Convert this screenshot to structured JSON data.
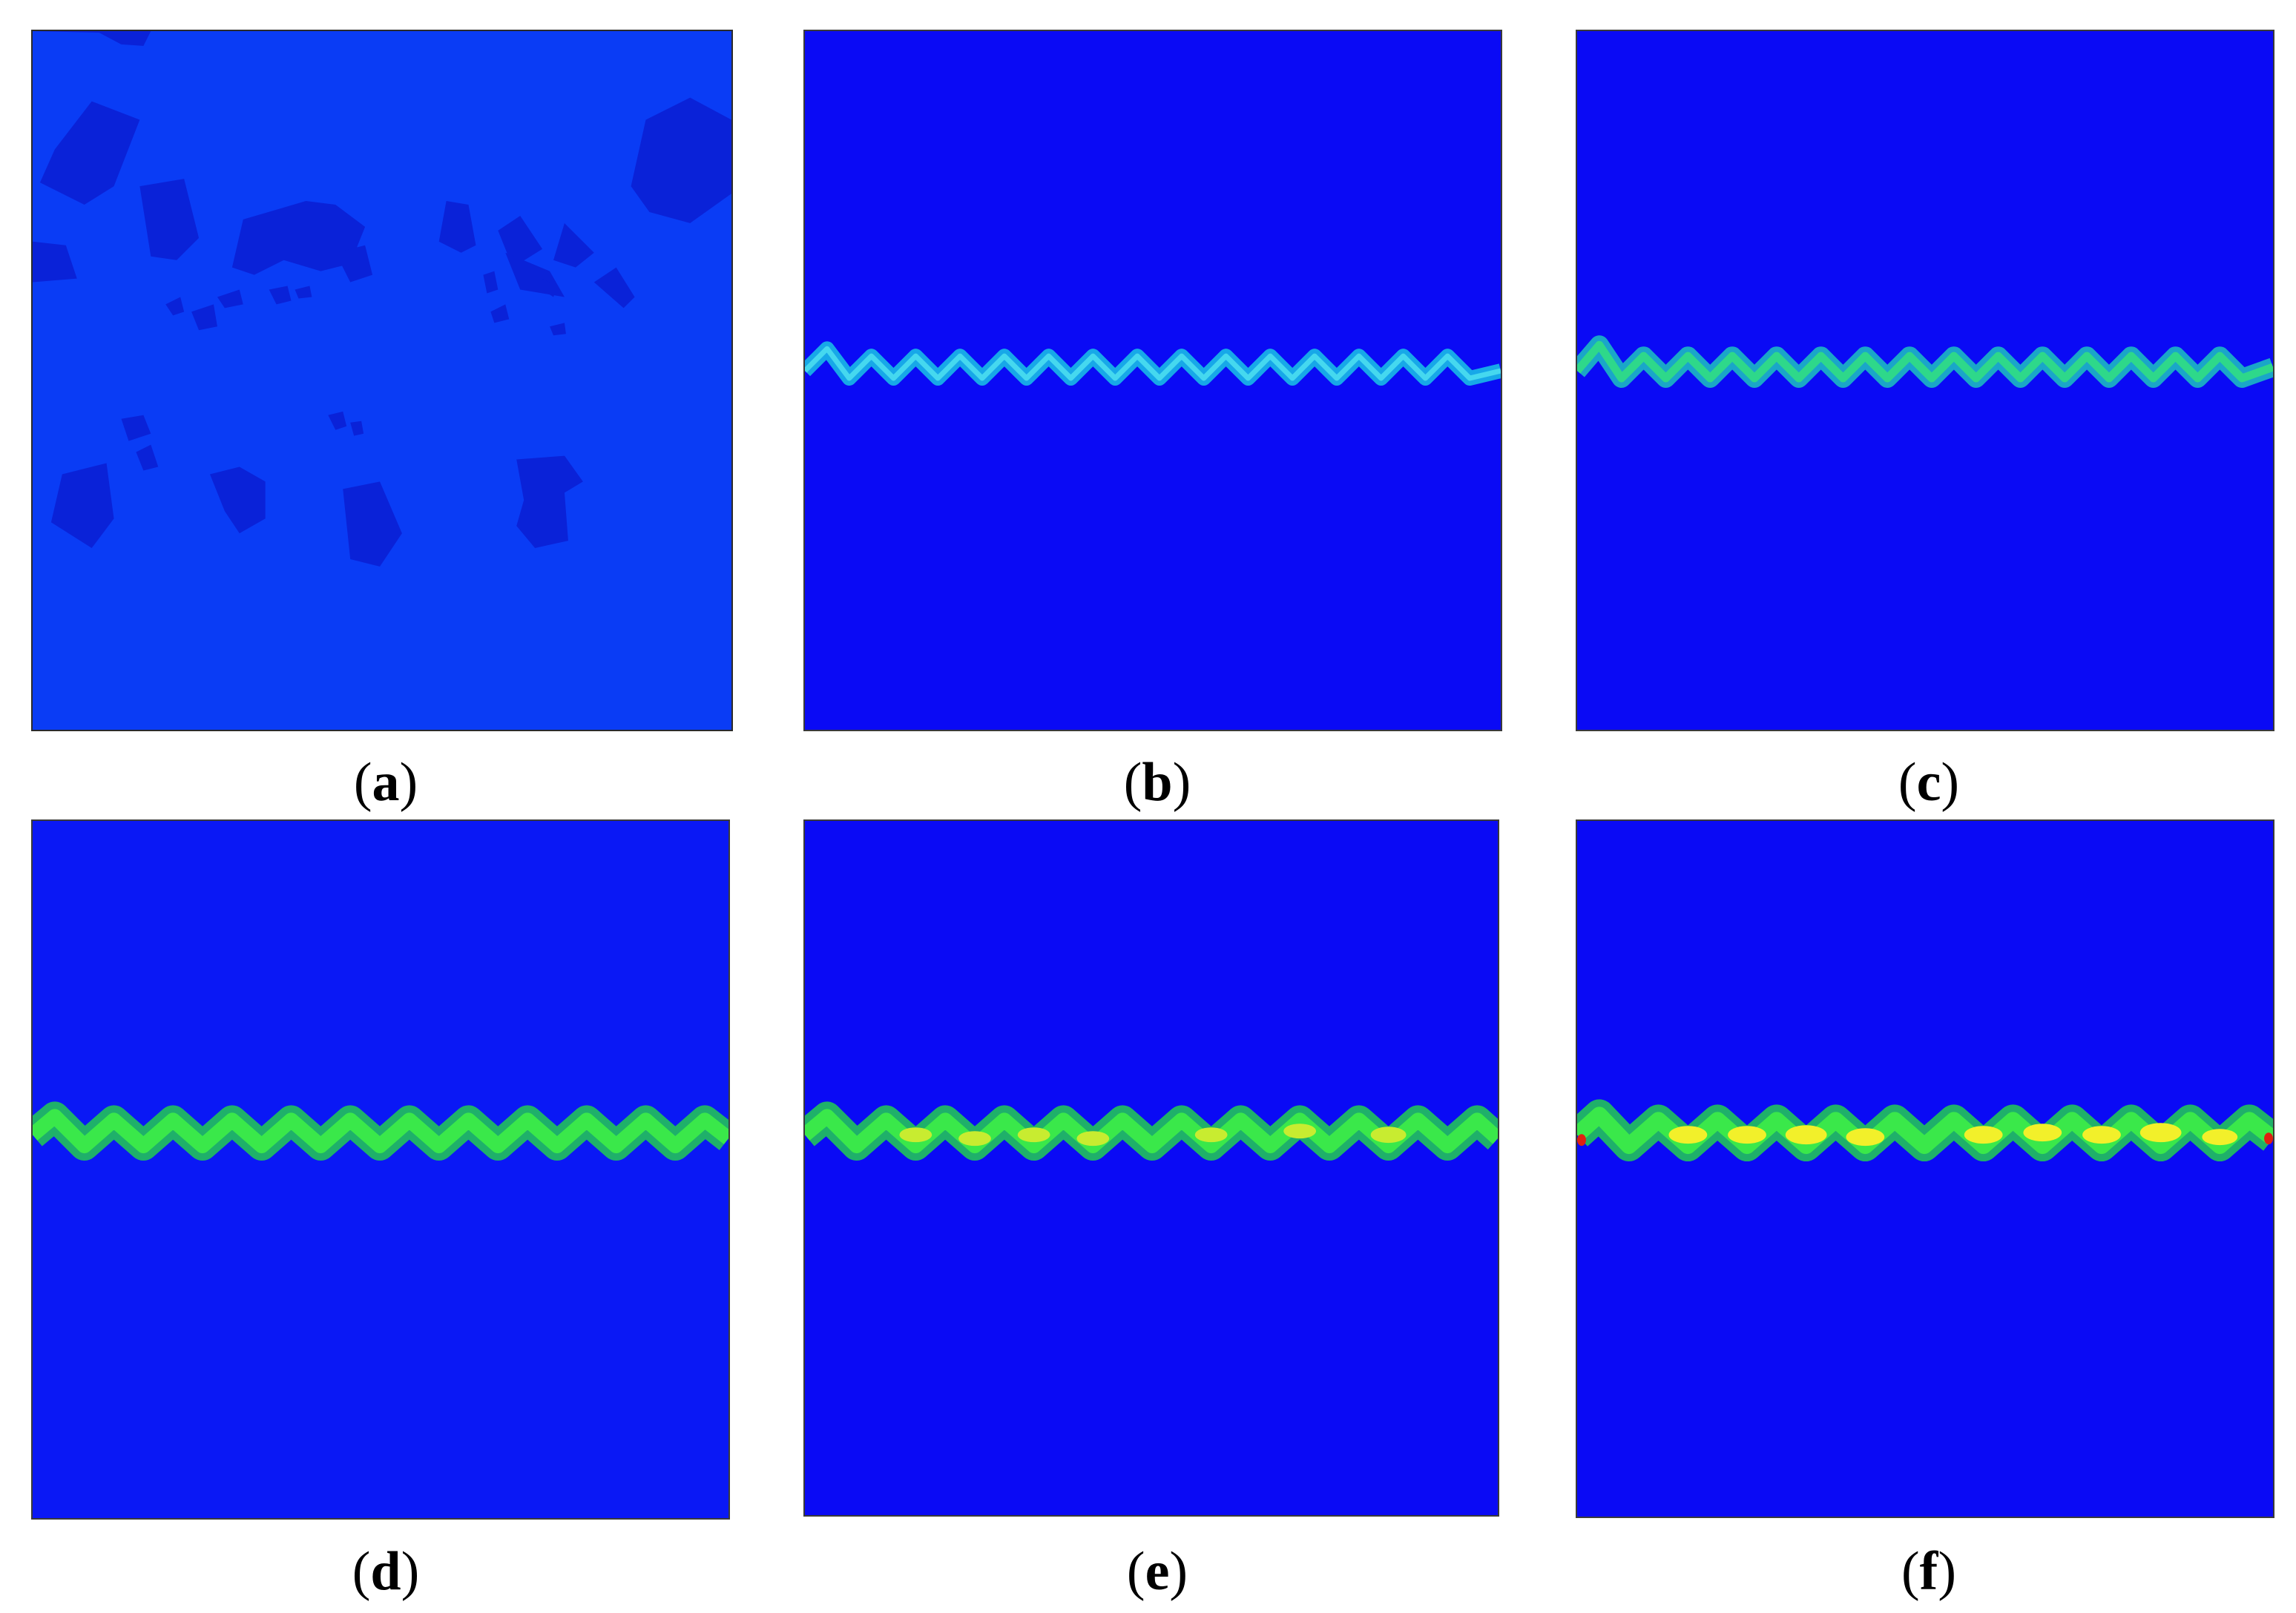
{
  "panels": [
    {
      "id": "a",
      "caption_open": "(",
      "caption_letter": "a",
      "caption_close": ")"
    },
    {
      "id": "b",
      "caption_open": "(",
      "caption_letter": "b",
      "caption_close": ")"
    },
    {
      "id": "c",
      "caption_open": "(",
      "caption_letter": "c",
      "caption_close": ")"
    },
    {
      "id": "d",
      "caption_open": "(",
      "caption_letter": "d",
      "caption_close": ")"
    },
    {
      "id": "e",
      "caption_open": "(",
      "caption_letter": "e",
      "caption_close": ")"
    },
    {
      "id": "f",
      "caption_open": "(",
      "caption_letter": "f",
      "caption_close": ")"
    }
  ],
  "colors": {
    "background_a": "#0a3cf5",
    "grain_a": "#0a22d8",
    "background": "#0a0af5",
    "band_cyan": "#2ec8e6",
    "band_green": "#1fd36a",
    "band_bright_green": "#2ee84a",
    "band_yellow": "#f2f02a",
    "band_orange": "#f2a020",
    "band_red": "#e02010"
  }
}
